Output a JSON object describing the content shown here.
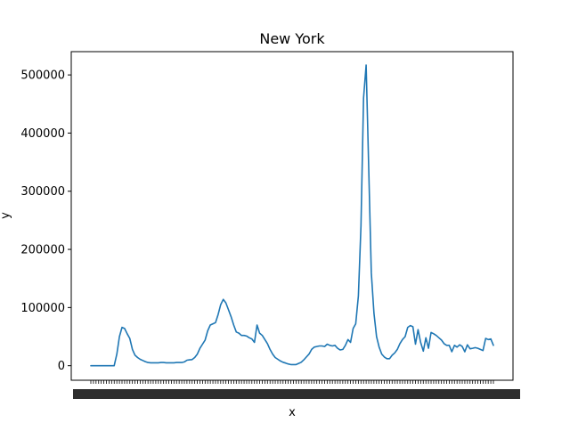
{
  "chart_data": {
    "type": "line",
    "title": "New York",
    "xlabel": "x",
    "ylabel": "y",
    "ylim": [
      -25000,
      540000
    ],
    "yticks": [
      0,
      100000,
      200000,
      300000,
      400000,
      500000
    ],
    "ytick_labels": [
      "0",
      "100000",
      "200000",
      "300000",
      "400000",
      "500000"
    ],
    "grid": false,
    "line_color": "#1f77b4",
    "x_tick_labels_legible": false,
    "series": [
      {
        "values": [
          0,
          0,
          0,
          0,
          0,
          0,
          0,
          0,
          0,
          0,
          20000,
          50000,
          66000,
          64000,
          55000,
          47000,
          28000,
          18000,
          14000,
          11000,
          9000,
          7000,
          5500,
          5000,
          5000,
          5000,
          5000,
          5500,
          5500,
          5000,
          5000,
          5000,
          5000,
          5500,
          5500,
          5500,
          6500,
          9500,
          10000,
          10500,
          14000,
          20000,
          30000,
          37000,
          44000,
          60000,
          70000,
          72000,
          74000,
          88000,
          105000,
          114000,
          108000,
          96000,
          84000,
          70000,
          58000,
          56000,
          52000,
          52000,
          51000,
          48000,
          46000,
          40000,
          70000,
          56000,
          52000,
          45000,
          38000,
          28000,
          20000,
          14000,
          11000,
          8000,
          6000,
          4500,
          3000,
          2000,
          2000,
          2000,
          4000,
          6000,
          10000,
          15000,
          20000,
          28000,
          32000,
          33000,
          34000,
          34000,
          33000,
          37000,
          35000,
          34000,
          35000,
          30000,
          27000,
          28000,
          35000,
          45000,
          40000,
          64000,
          72000,
          120000,
          240000,
          460000,
          517000,
          340000,
          160000,
          90000,
          50000,
          32000,
          20000,
          15000,
          12000,
          12000,
          18000,
          22000,
          28000,
          38000,
          45000,
          50000,
          66000,
          69000,
          67000,
          37000,
          62000,
          40000,
          25000,
          48000,
          30000,
          57000,
          55000,
          52000,
          48000,
          44000,
          38000,
          35000,
          35000,
          24000,
          35000,
          32000,
          36000,
          33000,
          24000,
          36000,
          29000,
          30000,
          31000,
          30000,
          28000,
          26000,
          47000,
          45000,
          46000,
          35000
        ]
      }
    ]
  }
}
